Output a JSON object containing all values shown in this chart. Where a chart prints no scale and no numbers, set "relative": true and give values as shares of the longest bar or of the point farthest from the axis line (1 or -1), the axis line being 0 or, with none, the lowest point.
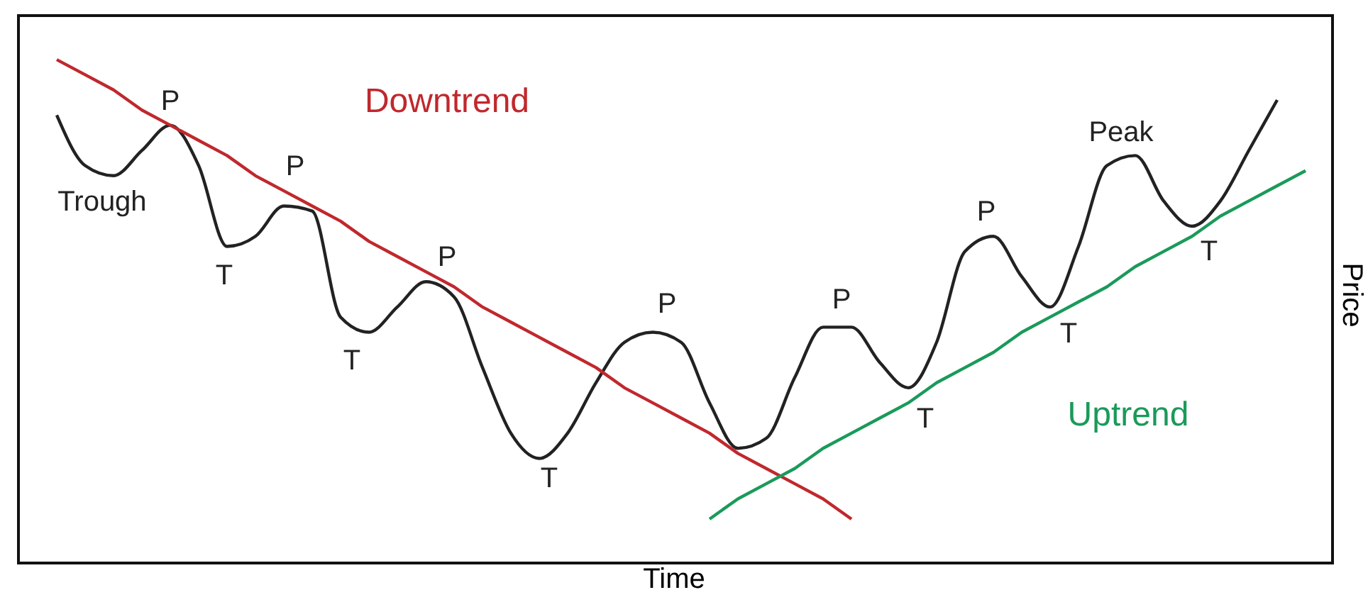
{
  "chart_data": {
    "type": "line",
    "relative": true,
    "xlabel": "Time",
    "ylabel": "Price",
    "marker": "none",
    "categories": [
      null,
      null,
      null,
      null,
      null,
      null,
      null,
      null,
      null,
      null,
      null,
      null,
      null,
      null,
      null,
      null,
      null,
      null,
      null,
      null,
      null,
      null,
      null,
      null,
      null,
      null,
      null,
      null,
      null,
      null,
      null,
      null,
      null,
      null,
      null,
      null,
      null,
      null,
      null,
      null,
      null,
      null,
      null,
      null,
      null
    ],
    "series": [
      {
        "color": "#222222",
        "values": [
          0.89,
          0.79,
          0.77,
          0.82,
          0.87,
          0.79,
          0.63,
          0.65,
          0.71,
          0.7,
          0.49,
          0.46,
          0.51,
          0.56,
          0.53,
          0.39,
          0.26,
          0.21,
          0.26,
          0.36,
          0.44,
          0.46,
          0.44,
          0.32,
          0.23,
          0.25,
          0.37,
          0.47,
          0.47,
          0.4,
          0.35,
          0.44,
          0.62,
          0.65,
          0.57,
          0.51,
          0.63,
          0.79,
          0.81,
          0.72,
          0.67,
          0.72,
          0.82,
          0.92,
          null
        ]
      },
      {
        "name": "Downtrend",
        "color": "#c0282d",
        "values": [
          1.0,
          0.97,
          0.94,
          0.9,
          0.87,
          0.84,
          0.81,
          0.77,
          0.74,
          0.71,
          0.68,
          0.64,
          0.61,
          0.58,
          0.55,
          0.51,
          0.48,
          0.45,
          0.42,
          0.39,
          0.35,
          0.32,
          0.29,
          0.26,
          0.22,
          0.19,
          0.16,
          0.13,
          0.09,
          null,
          null,
          null,
          null,
          null,
          null,
          null,
          null,
          null,
          null,
          null,
          null,
          null,
          null,
          null,
          null
        ]
      },
      {
        "name": "Uptrend",
        "color": "#1a9a5a",
        "values": [
          null,
          null,
          null,
          null,
          null,
          null,
          null,
          null,
          null,
          null,
          null,
          null,
          null,
          null,
          null,
          null,
          null,
          null,
          null,
          null,
          null,
          null,
          null,
          0.09,
          0.13,
          0.16,
          0.19,
          0.23,
          0.26,
          0.29,
          0.32,
          0.36,
          0.39,
          0.42,
          0.46,
          0.49,
          0.52,
          0.55,
          0.59,
          0.62,
          0.65,
          0.69,
          0.72,
          0.75,
          0.78
        ]
      }
    ],
    "annotations": [
      "P",
      "Trough",
      "T",
      "P",
      "T",
      "P",
      "T",
      "P",
      "P",
      "T",
      "P",
      "T",
      "Peak",
      "T"
    ]
  }
}
